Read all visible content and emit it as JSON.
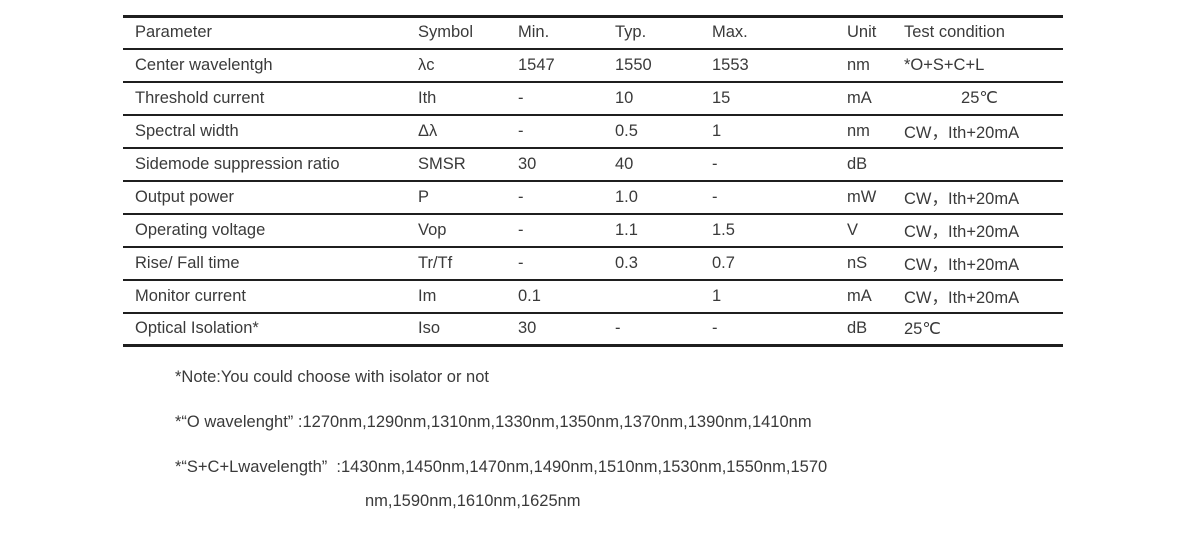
{
  "table": {
    "columns": [
      "Parameter",
      "Symbol",
      "Min.",
      "Typ.",
      "Max.",
      "Unit",
      "Test condition"
    ],
    "rows": [
      {
        "param": "Center wavelentgh",
        "symbol": "λc",
        "min": "1547",
        "typ": "1550",
        "max": "1553",
        "unit": "nm",
        "test": "*O+S+C+L"
      },
      {
        "param": "Threshold current",
        "symbol": "Ith",
        "min": "-",
        "typ": "10",
        "max": "15",
        "unit": "mA",
        "test": "25℃",
        "tc_align": "center"
      },
      {
        "param": "Spectral width",
        "symbol": "Δλ",
        "min": "-",
        "typ": "0.5",
        "max": "1",
        "unit": "nm",
        "test": "CW，Ith+20mA"
      },
      {
        "param": "Sidemode suppression ratio",
        "symbol": "SMSR",
        "min": "30",
        "typ": "40",
        "max": "-",
        "unit": "dB",
        "test": ""
      },
      {
        "param": "Output power",
        "symbol": "P",
        "min": "-",
        "typ": "1.0",
        "max": "-",
        "unit": "mW",
        "test": "CW，Ith+20mA"
      },
      {
        "param": "Operating voltage",
        "symbol": "Vop",
        "min": "-",
        "typ": "1.1",
        "max": "1.5",
        "unit": "V",
        "test": "CW，Ith+20mA"
      },
      {
        "param": "Rise/ Fall time",
        "symbol": "Tr/Tf",
        "min": "-",
        "typ": "0.3",
        "max": "0.7",
        "unit": "nS",
        "test": "CW，Ith+20mA"
      },
      {
        "param": "Monitor current",
        "symbol": "Im",
        "min": "0.1",
        "typ": "",
        "max": "1",
        "unit": "mA",
        "test": "CW，Ith+20mA"
      },
      {
        "param": "Optical Isolation*",
        "symbol": "Iso",
        "min": "30",
        "typ": "-",
        "max": "-",
        "unit": "dB",
        "test": "25℃"
      }
    ]
  },
  "notes": {
    "note_isolator": "*Note:You could choose with isolator or not",
    "note_o_band": "*“O wavelenght” :1270nm,1290nm,1310nm,1330nm,1350nm,1370nm,1390nm,1410nm",
    "note_scl_line1": "*“S+C+Lwavelength”  :1430nm,1450nm,1470nm,1490nm,1510nm,1530nm,1550nm,1570",
    "note_scl_line2": "nm,1590nm,1610nm,1625nm"
  },
  "colors": {
    "background": "#ffffff",
    "text": "#3a3a3a",
    "rule": "#1f1f1f"
  }
}
